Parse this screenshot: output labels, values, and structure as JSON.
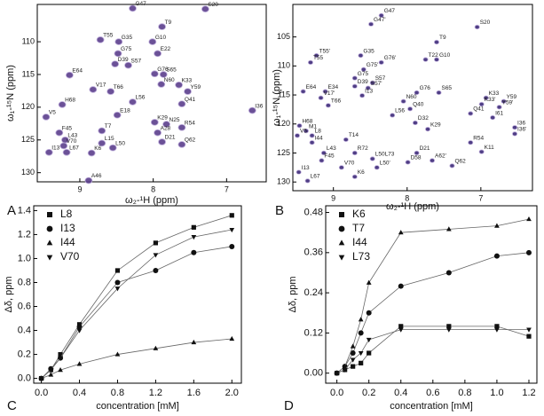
{
  "chart_data": [
    {
      "type": "scatter",
      "panel": "A",
      "xlabel": "ω₂-¹H (ppm)",
      "ylabel": "ω₁-¹⁵N (ppm)",
      "color": "#5b3f8c",
      "xlim": [
        9.58,
        6.46
      ],
      "ylim": [
        131.4,
        104.3
      ],
      "xticks": [
        9,
        8,
        7
      ],
      "yticks": [
        110,
        115,
        120,
        125,
        130
      ],
      "labels": [
        "G47",
        "T9",
        "S20",
        "T55",
        "G35",
        "G10",
        "G75",
        "E22",
        "D39",
        "S57",
        "S65",
        "K33",
        "Y59",
        "E64",
        "V17",
        "T66",
        "G76",
        "N60",
        "L56",
        "Q41",
        "E18",
        "H68",
        "V5",
        "K29",
        "N25",
        "R54",
        "I36",
        "F45",
        "L43",
        "A28",
        "L15",
        "L50",
        "D21",
        "Q62",
        "I13",
        "L67",
        "V70",
        "K6",
        "A46",
        "T7"
      ],
      "x": [
        8.28,
        7.88,
        7.29,
        8.72,
        8.47,
        8.01,
        8.48,
        7.94,
        8.52,
        8.34,
        7.86,
        7.65,
        7.53,
        9.14,
        8.82,
        8.58,
        7.98,
        7.89,
        8.28,
        7.61,
        8.49,
        9.24,
        9.46,
        7.98,
        7.82,
        7.61,
        6.65,
        9.28,
        9.2,
        7.94,
        8.7,
        8.55,
        7.88,
        7.61,
        9.42,
        9.18,
        9.22,
        8.84,
        8.88,
        8.7
      ],
      "values": [
        104.9,
        107.7,
        105.0,
        109.7,
        110.0,
        110.0,
        111.8,
        111.8,
        113.4,
        113.6,
        115.0,
        116.6,
        117.6,
        115.1,
        117.3,
        117.6,
        114.9,
        116.5,
        119.2,
        119.5,
        121.2,
        119.6,
        121.5,
        122.3,
        122.6,
        123.1,
        120.5,
        123.9,
        125.0,
        123.9,
        125.5,
        126.2,
        125.3,
        125.7,
        126.9,
        126.9,
        125.9,
        127.0,
        131.2,
        123.6
      ]
    },
    {
      "type": "scatter",
      "panel": "B",
      "xlabel": "ω₂-¹H (ppm)",
      "ylabel": "ω₁-¹⁵N (ppm)",
      "color": "#3d2a78",
      "xlim": [
        9.55,
        6.3
      ],
      "ylim": [
        131.5,
        99.4
      ],
      "xticks": [
        9,
        8,
        7
      ],
      "yticks": [
        105,
        110,
        115,
        120,
        125,
        130
      ],
      "labels": [
        "G47",
        "G47'",
        "S20",
        "T9",
        "T55'",
        "T55",
        "G35",
        "G76'",
        "G75'",
        "T22",
        "G10",
        "G75",
        "S57",
        "S57'",
        "D39",
        "E34",
        "I13",
        "V17'",
        "T66",
        "G76",
        "S65",
        "N60",
        "Q40",
        "K33",
        "K33'",
        "Y59",
        "Y59'",
        "Q41",
        "I61",
        "E64",
        "L56",
        "D32",
        "K29",
        "H68",
        "M1",
        "V5",
        "L8",
        "I44",
        "T14",
        "R54",
        "K11",
        "I36",
        "I36'",
        "D21",
        "D58",
        "A62'",
        "Q62",
        "L43",
        "F45",
        "R72",
        "L50L73",
        "L50'",
        "V70",
        "K6",
        "I13",
        "L67"
      ],
      "x": [
        8.35,
        8.49,
        7.05,
        7.6,
        9.23,
        9.31,
        8.63,
        8.35,
        8.59,
        7.75,
        7.6,
        8.71,
        8.47,
        8.53,
        8.71,
        9.11,
        8.61,
        9.17,
        9.07,
        7.87,
        7.57,
        8.05,
        7.96,
        6.93,
        6.99,
        6.69,
        6.75,
        7.14,
        6.84,
        9.41,
        8.2,
        7.89,
        7.72,
        9.46,
        9.37,
        9.49,
        9.29,
        9.29,
        8.83,
        7.14,
        6.99,
        6.54,
        6.54,
        7.87,
        7.99,
        7.66,
        7.39,
        9.13,
        9.16,
        8.71,
        8.47,
        8.41,
        8.89,
        8.71,
        9.47,
        9.35
      ],
      "values": [
        101.3,
        102.8,
        103.3,
        105.9,
        108.2,
        109.4,
        108.2,
        109.4,
        110.6,
        108.9,
        108.9,
        112.1,
        112.9,
        113.8,
        113.5,
        114.4,
        115.1,
        115.5,
        116.8,
        114.6,
        114.6,
        116.1,
        117.4,
        115.5,
        116.6,
        116.1,
        117.1,
        118.2,
        118.9,
        114.4,
        118.5,
        119.8,
        120.9,
        120.3,
        121.2,
        122.0,
        122.0,
        123.2,
        122.7,
        123.2,
        124.8,
        120.6,
        121.7,
        125.0,
        126.6,
        126.3,
        127.2,
        125.0,
        126.3,
        125.0,
        126.0,
        127.5,
        127.5,
        129.1,
        128.3,
        129.8
      ]
    },
    {
      "type": "line",
      "panel": "C",
      "xlabel": "concentration [mM]",
      "ylabel": "Δδ, ppm",
      "xlim": [
        -0.08,
        2.1
      ],
      "ylim": [
        -0.04,
        1.44
      ],
      "xticks": [
        {
          "value": 0,
          "label": "0.0"
        },
        0.4,
        0.8,
        1.2,
        1.6,
        {
          "value": 2,
          "label": "2.0"
        }
      ],
      "yticks": [
        {
          "value": 0,
          "label": "0.0"
        },
        0.2,
        0.4,
        0.6,
        0.8,
        {
          "value": 1,
          "label": "1.0"
        },
        1.2,
        1.4
      ],
      "x": [
        0,
        0.1,
        0.2,
        0.4,
        0.8,
        1.2,
        1.6,
        2.0
      ],
      "series": [
        {
          "name": "L8",
          "marker": "square",
          "color": "#111",
          "values": [
            0,
            0.07,
            0.2,
            0.45,
            0.9,
            1.13,
            1.26,
            1.36
          ]
        },
        {
          "name": "I13",
          "marker": "circle",
          "color": "#111",
          "values": [
            0,
            0.08,
            0.17,
            0.43,
            0.8,
            0.9,
            1.05,
            1.1
          ]
        },
        {
          "name": "I44",
          "marker": "triangle-up",
          "color": "#111",
          "values": [
            0,
            0.03,
            0.07,
            0.12,
            0.2,
            0.25,
            0.3,
            0.33
          ]
        },
        {
          "name": "V70",
          "marker": "triangle-down",
          "color": "#111",
          "values": [
            0,
            0.07,
            0.17,
            0.4,
            0.75,
            1.03,
            1.18,
            1.24
          ]
        }
      ]
    },
    {
      "type": "line",
      "panel": "D",
      "xlabel": "concentration [mM]",
      "ylabel": "Δδ, ppm",
      "xlim": [
        -0.07,
        1.25
      ],
      "ylim": [
        -0.03,
        0.5
      ],
      "xticks": [
        {
          "value": 0,
          "label": "0.0"
        },
        0.2,
        0.4,
        0.6,
        0.8,
        {
          "value": 1,
          "label": "1.0"
        },
        1.2
      ],
      "yticks": [
        {
          "value": 0,
          "label": "0.00"
        },
        0.12,
        0.24,
        0.36,
        0.48
      ],
      "x": [
        0,
        0.05,
        0.1,
        0.15,
        0.2,
        0.4,
        0.7,
        1.0,
        1.2
      ],
      "series": [
        {
          "name": "K6",
          "marker": "square",
          "color": "#111",
          "values": [
            0,
            0.01,
            0.02,
            0.03,
            0.06,
            0.14,
            0.14,
            0.14,
            0.11
          ]
        },
        {
          "name": "T7",
          "marker": "circle",
          "color": "#111",
          "values": [
            0,
            0.02,
            0.06,
            0.12,
            0.18,
            0.26,
            0.3,
            0.35,
            0.36
          ]
        },
        {
          "name": "I44",
          "marker": "triangle-up",
          "color": "#111",
          "values": [
            0,
            0.02,
            0.08,
            0.16,
            0.27,
            0.42,
            0.43,
            0.44,
            0.46
          ]
        },
        {
          "name": "L73",
          "marker": "triangle-down",
          "color": "#111",
          "values": [
            0,
            0.01,
            0.04,
            0.06,
            0.1,
            0.13,
            0.13,
            0.13,
            0.13
          ]
        }
      ]
    }
  ]
}
